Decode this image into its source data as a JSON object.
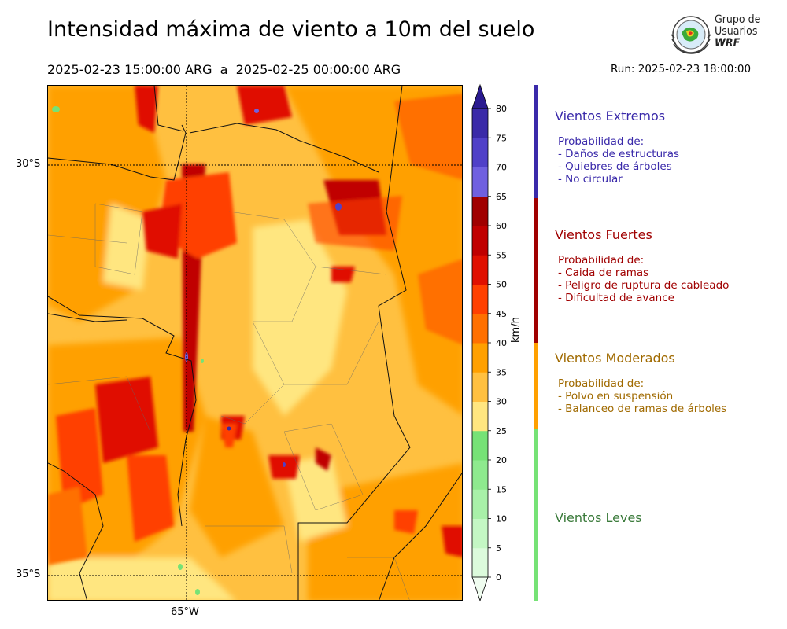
{
  "header": {
    "title": "Intensidad máxima de viento a 10m del suelo",
    "date_range": "2025-02-23 15:00:00 ARG  a  2025-02-25 00:00:00 ARG",
    "run": "Run: 2025-02-23 18:00:00"
  },
  "logo": {
    "line1": "Grupo de",
    "line2": "Usuarios",
    "line3": "WRF"
  },
  "map": {
    "lat_labels": [
      "30°S",
      "35°S"
    ],
    "lon_labels": [
      "65°W"
    ]
  },
  "colorbar": {
    "unit": "km/h",
    "ticks": [
      "0",
      "5",
      "10",
      "15",
      "20",
      "25",
      "30",
      "35",
      "40",
      "45",
      "50",
      "55",
      "60",
      "65",
      "70",
      "75",
      "80"
    ],
    "colors": [
      "#f0fdf0",
      "#dcfbdc",
      "#c4f7c4",
      "#a8f0a8",
      "#8eea8e",
      "#76e276",
      "#ffe680",
      "#ffc040",
      "#ffa000",
      "#ff7000",
      "#ff4000",
      "#e01000",
      "#c00000",
      "#a00000",
      "#7060e0",
      "#5040c8",
      "#3a2aa8",
      "#2a1a90"
    ]
  },
  "categories": [
    {
      "title": "Vientos Extremos",
      "color": "#3a2aaa",
      "text_color": "#3a2aaa",
      "desc": [
        "Probabilidad de:",
        "- Daños de estructuras",
        "- Quiebres de árboles",
        "- No circular"
      ]
    },
    {
      "title": "Vientos Fuertes",
      "color": "#a00000",
      "text_color": "#a00000",
      "desc": [
        "Probabilidad de:",
        "- Caida de ramas",
        "- Peligro de ruptura de cableado",
        "- Dificultad de avance"
      ]
    },
    {
      "title": "Vientos Moderados",
      "color": "#ffa000",
      "text_color": "#a06a00",
      "desc": [
        "Probabilidad de:",
        "- Polvo en suspensión",
        "- Balanceo de ramas de árboles"
      ]
    },
    {
      "title": "Vientos Leves",
      "color": "#76e276",
      "text_color": "#3a7a3a",
      "desc": []
    }
  ]
}
